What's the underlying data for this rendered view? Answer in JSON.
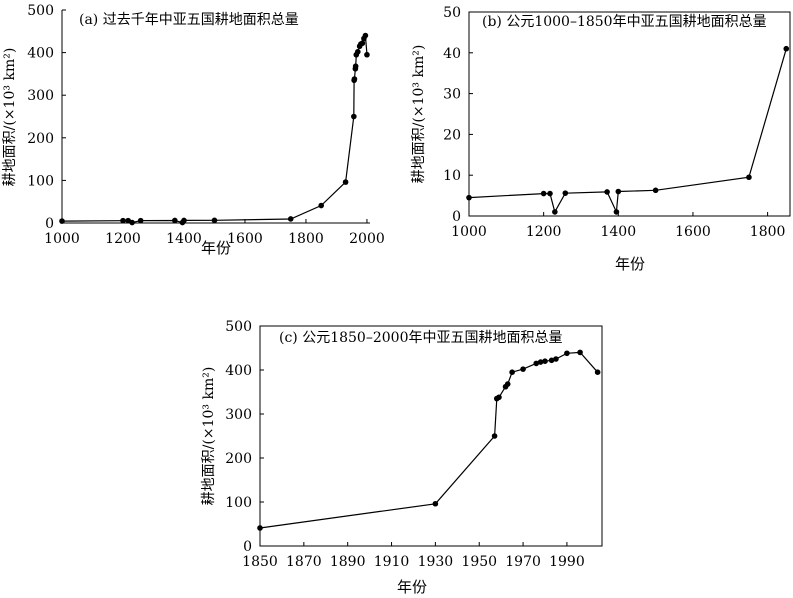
{
  "chart_data": [
    {
      "type": "line",
      "title": "(a) 过去千年中亚五国耕地面积总量",
      "xlabel": "年份",
      "ylabel": "耕地面积/(×10³ km²)",
      "xlim": [
        1000,
        2010
      ],
      "ylim": [
        0,
        500
      ],
      "xticks": [
        1000,
        1200,
        1400,
        1600,
        1800,
        2000
      ],
      "yticks": [
        0,
        100,
        200,
        300,
        400,
        500
      ],
      "grid": false,
      "series": [
        {
          "x": [
            1000,
            1200,
            1217,
            1230,
            1258,
            1370,
            1395,
            1400,
            1500,
            1750,
            1850,
            1930,
            1957,
            1958,
            1959,
            1962,
            1963,
            1965,
            1970,
            1976,
            1980,
            1985,
            1990,
            1995,
            2000
          ],
          "y": [
            4.5,
            5.5,
            5.5,
            1,
            5.6,
            5.9,
            1,
            6,
            6.3,
            9.5,
            41,
            96,
            250,
            335,
            338,
            362,
            368,
            395,
            402,
            415,
            420,
            422,
            433,
            440,
            395
          ]
        }
      ]
    },
    {
      "type": "line",
      "title": "(b) 公元1000–1850年中亚五国耕地面积总量",
      "xlabel": "年份",
      "ylabel": "耕地面积/(×10³ km²)",
      "xlim": [
        1000,
        1860
      ],
      "ylim": [
        0,
        50
      ],
      "xticks": [
        1000,
        1200,
        1400,
        1600,
        1800
      ],
      "yticks": [
        0,
        10,
        20,
        30,
        40,
        50
      ],
      "grid": false,
      "series": [
        {
          "x": [
            1000,
            1200,
            1217,
            1230,
            1258,
            1370,
            1395,
            1400,
            1500,
            1750,
            1850
          ],
          "y": [
            4.5,
            5.5,
            5.5,
            1,
            5.6,
            5.9,
            1,
            6,
            6.3,
            9.5,
            41
          ]
        }
      ]
    },
    {
      "type": "line",
      "title": "(c) 公元1850–2000年中亚五国耕地面积总量",
      "xlabel": "年份",
      "ylabel": "耕地面积/(×10³ km²)",
      "xlim": [
        1850,
        2006
      ],
      "ylim": [
        0,
        500
      ],
      "xticks": [
        1850,
        1870,
        1890,
        1910,
        1930,
        1950,
        1970,
        1990
      ],
      "yticks": [
        0,
        100,
        200,
        300,
        400,
        500
      ],
      "grid": false,
      "series": [
        {
          "x": [
            1850,
            1930,
            1957,
            1958,
            1959,
            1962,
            1963,
            1965,
            1970,
            1976,
            1978,
            1980,
            1983,
            1985,
            1990,
            1996,
            2004
          ],
          "y": [
            41,
            96,
            250,
            335,
            338,
            362,
            368,
            395,
            402,
            415,
            418,
            420,
            422,
            425,
            438,
            440,
            395
          ]
        }
      ]
    }
  ]
}
